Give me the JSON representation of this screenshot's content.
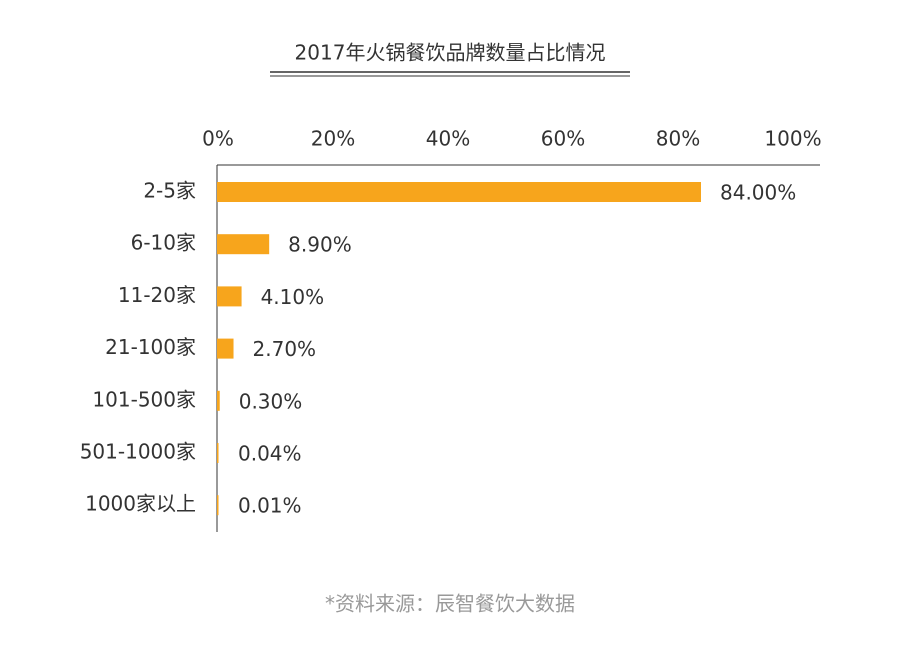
{
  "chart_data": {
    "type": "barh",
    "title": "2017年火锅餐饮品牌数量占比情况",
    "categories": [
      "2-5家",
      "6-10家",
      "11-20家",
      "21-100家",
      "101-500家",
      "501-1000家",
      "1000家以上"
    ],
    "values": [
      84.0,
      8.9,
      4.1,
      2.7,
      0.3,
      0.04,
      0.01
    ],
    "value_labels": [
      "84.00%",
      "8.90%",
      "4.10%",
      "2.70%",
      "0.30%",
      "0.04%",
      "0.01%"
    ],
    "color": "#f7a51c",
    "xlim": [
      0,
      100
    ],
    "xticks": [
      {
        "value": 0,
        "label": "0%"
      },
      {
        "value": 20,
        "label": "20%"
      },
      {
        "value": 40,
        "label": "40%"
      },
      {
        "value": 60,
        "label": "60%"
      },
      {
        "value": 80,
        "label": "80%"
      },
      {
        "value": 100,
        "label": "100%"
      }
    ],
    "source": "*资料来源：辰智餐饮大数据"
  }
}
